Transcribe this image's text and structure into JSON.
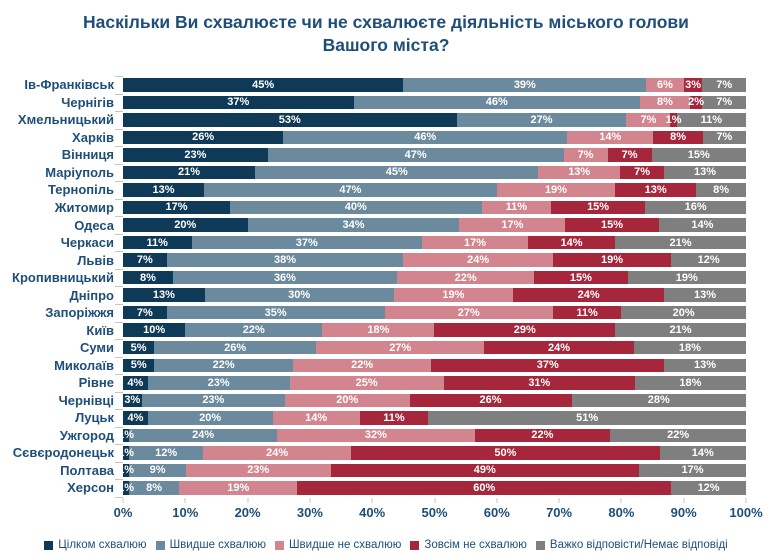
{
  "title": "Наскільки Ви схвалюєте чи не схвалюєте діяльність міського голови\nВашого міста?",
  "colors": {
    "text_navy": "#1F4E79",
    "tick_gray": "#C6C6C6",
    "background": "#FFFFFF",
    "bar_label_white": "#FFFFFF"
  },
  "chart_data": {
    "type": "bar",
    "orientation": "horizontal",
    "stacked": true,
    "unit": "%",
    "title": "Наскільки Ви схвалюєте чи не схвалюєте діяльність міського голови Вашого міста?",
    "xlabel": "",
    "ylabel": "",
    "xlim": [
      0,
      100
    ],
    "x_ticks": [
      "0%",
      "10%",
      "20%",
      "30%",
      "40%",
      "50%",
      "60%",
      "70%",
      "80%",
      "90%",
      "100%"
    ],
    "grid": false,
    "legend_position": "bottom",
    "value_labels": "inside-white-bold",
    "categories": [
      "Ів-Франківськ",
      "Чернігів",
      "Хмельницький",
      "Харків",
      "Вінниця",
      "Маріуполь",
      "Тернопіль",
      "Житомир",
      "Одеса",
      "Черкаси",
      "Львів",
      "Кропивницький",
      "Дніпро",
      "Запоріжжя",
      "Київ",
      "Суми",
      "Миколаїв",
      "Рівне",
      "Чернівці",
      "Луцьк",
      "Ужгород",
      "Сєвєродонецьк",
      "Полтава",
      "Херсон"
    ],
    "series": [
      {
        "name": "Цілком схвалюю",
        "color": "#0E3A58",
        "values": [
          45,
          37,
          53,
          26,
          23,
          21,
          13,
          17,
          20,
          11,
          7,
          8,
          13,
          7,
          10,
          5,
          5,
          4,
          3,
          4,
          1,
          1,
          1,
          1
        ]
      },
      {
        "name": "Швидше схвалюю",
        "color": "#6B8A9E",
        "values": [
          39,
          46,
          27,
          46,
          47,
          45,
          47,
          40,
          34,
          37,
          38,
          36,
          30,
          35,
          22,
          26,
          22,
          23,
          23,
          20,
          24,
          12,
          9,
          8
        ]
      },
      {
        "name": "Швидше не схвалюю",
        "color": "#D3858F",
        "values": [
          6,
          8,
          7,
          14,
          7,
          13,
          19,
          11,
          17,
          17,
          24,
          22,
          19,
          27,
          18,
          27,
          22,
          25,
          20,
          14,
          32,
          24,
          23,
          19
        ]
      },
      {
        "name": "Зовсім не схвалюю",
        "color": "#A6273C",
        "values": [
          3,
          2,
          1,
          8,
          7,
          7,
          13,
          15,
          15,
          14,
          19,
          15,
          24,
          11,
          29,
          24,
          37,
          31,
          26,
          11,
          22,
          50,
          49,
          60
        ]
      },
      {
        "name": "Важко відповісти/Немає відповіді",
        "color": "#7F7F7F",
        "values": [
          7,
          7,
          11,
          7,
          15,
          13,
          8,
          16,
          14,
          21,
          12,
          19,
          13,
          20,
          21,
          18,
          13,
          18,
          28,
          51,
          22,
          14,
          17,
          12
        ]
      }
    ]
  }
}
